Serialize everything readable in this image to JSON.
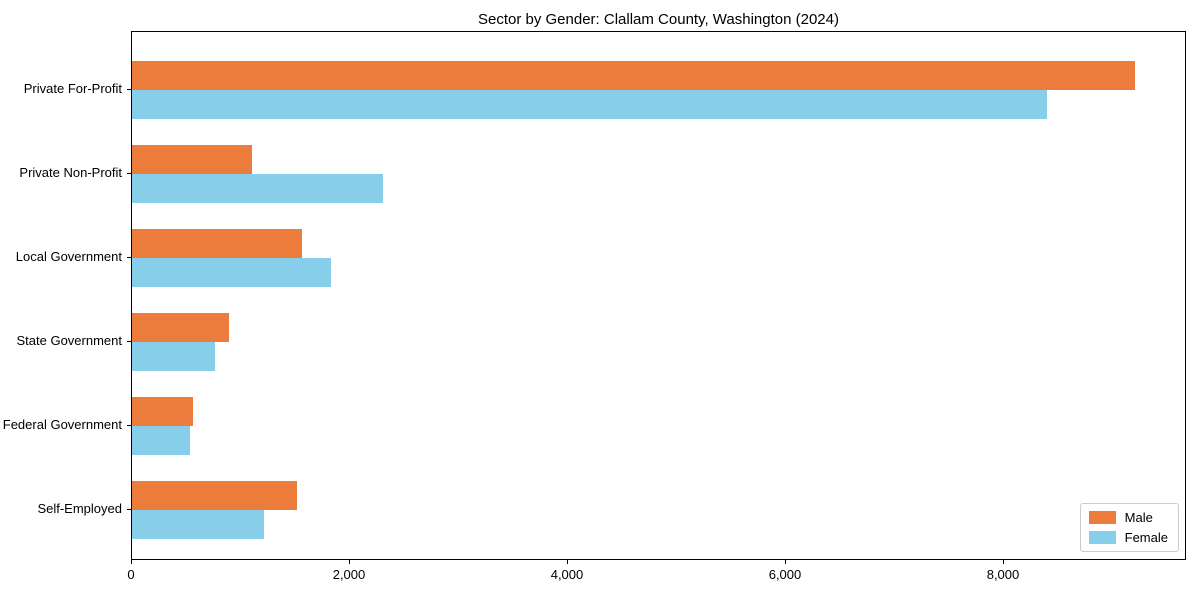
{
  "title": "Sector by Gender: Clallam County, Washington (2024)",
  "chart_data": {
    "type": "bar",
    "orientation": "horizontal",
    "title": "Sector by Gender: Clallam County, Washington (2024)",
    "xlabel": "",
    "ylabel": "",
    "categories": [
      "Private For-Profit",
      "Private Non-Profit",
      "Local Government",
      "State Government",
      "Federal Government",
      "Self-Employed"
    ],
    "series": [
      {
        "name": "Male",
        "color": "#EB7C3C",
        "values": [
          9200,
          1100,
          1560,
          890,
          560,
          1510
        ]
      },
      {
        "name": "Female",
        "color": "#87CEEB",
        "values": [
          8400,
          2300,
          1830,
          760,
          530,
          1210
        ]
      }
    ],
    "xlim": [
      0,
      9680
    ],
    "xticks": [
      0,
      2000,
      4000,
      6000,
      8000
    ],
    "xtick_labels": [
      "0",
      "2,000",
      "4,000",
      "6,000",
      "8,000"
    ],
    "grid": false,
    "legend_position": "lower right"
  }
}
